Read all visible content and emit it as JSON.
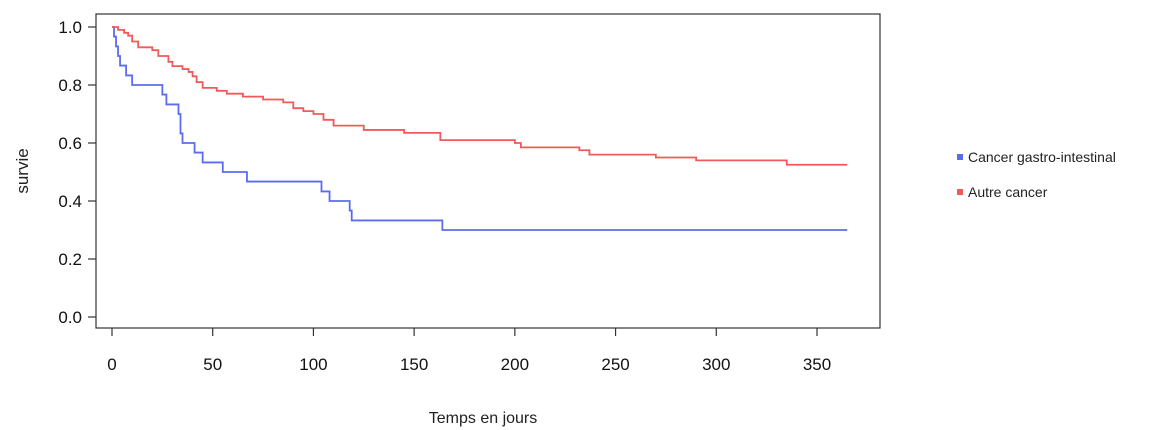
{
  "chart_data": {
    "type": "line",
    "title": "",
    "xlabel": "Temps en jours",
    "ylabel": "survie",
    "xlim": [
      0,
      365
    ],
    "ylim": [
      0,
      1
    ],
    "x_ticks": [
      0,
      50,
      100,
      150,
      200,
      250,
      300,
      350
    ],
    "y_ticks": [
      0.0,
      0.2,
      0.4,
      0.6,
      0.8,
      1.0
    ],
    "grid": false,
    "legend_position": "right",
    "series": [
      {
        "name": "Cancer gastro-intestinal",
        "color": "#5b6cf0",
        "step": true,
        "points": [
          [
            0,
            1.0
          ],
          [
            1,
            0.967
          ],
          [
            2,
            0.933
          ],
          [
            3,
            0.9
          ],
          [
            4,
            0.867
          ],
          [
            7,
            0.833
          ],
          [
            10,
            0.8
          ],
          [
            25,
            0.767
          ],
          [
            27,
            0.733
          ],
          [
            33,
            0.7
          ],
          [
            34,
            0.633
          ],
          [
            35,
            0.6
          ],
          [
            41,
            0.567
          ],
          [
            45,
            0.533
          ],
          [
            55,
            0.5
          ],
          [
            67,
            0.467
          ],
          [
            104,
            0.433
          ],
          [
            108,
            0.4
          ],
          [
            118,
            0.367
          ],
          [
            119,
            0.333
          ],
          [
            164,
            0.3
          ],
          [
            365,
            0.3
          ]
        ]
      },
      {
        "name": "Autre cancer",
        "color": "#f25a5a",
        "step": true,
        "points": [
          [
            0,
            1.0
          ],
          [
            3,
            0.99
          ],
          [
            6,
            0.98
          ],
          [
            8,
            0.97
          ],
          [
            10,
            0.95
          ],
          [
            13,
            0.93
          ],
          [
            20,
            0.92
          ],
          [
            23,
            0.9
          ],
          [
            28,
            0.88
          ],
          [
            30,
            0.865
          ],
          [
            35,
            0.855
          ],
          [
            38,
            0.845
          ],
          [
            40,
            0.83
          ],
          [
            42,
            0.81
          ],
          [
            45,
            0.79
          ],
          [
            52,
            0.78
          ],
          [
            57,
            0.77
          ],
          [
            65,
            0.76
          ],
          [
            75,
            0.75
          ],
          [
            85,
            0.74
          ],
          [
            90,
            0.72
          ],
          [
            95,
            0.71
          ],
          [
            100,
            0.7
          ],
          [
            105,
            0.68
          ],
          [
            110,
            0.66
          ],
          [
            125,
            0.645
          ],
          [
            145,
            0.635
          ],
          [
            163,
            0.61
          ],
          [
            200,
            0.6
          ],
          [
            203,
            0.585
          ],
          [
            232,
            0.575
          ],
          [
            237,
            0.56
          ],
          [
            270,
            0.55
          ],
          [
            290,
            0.54
          ],
          [
            335,
            0.525
          ],
          [
            365,
            0.525
          ]
        ]
      }
    ]
  }
}
